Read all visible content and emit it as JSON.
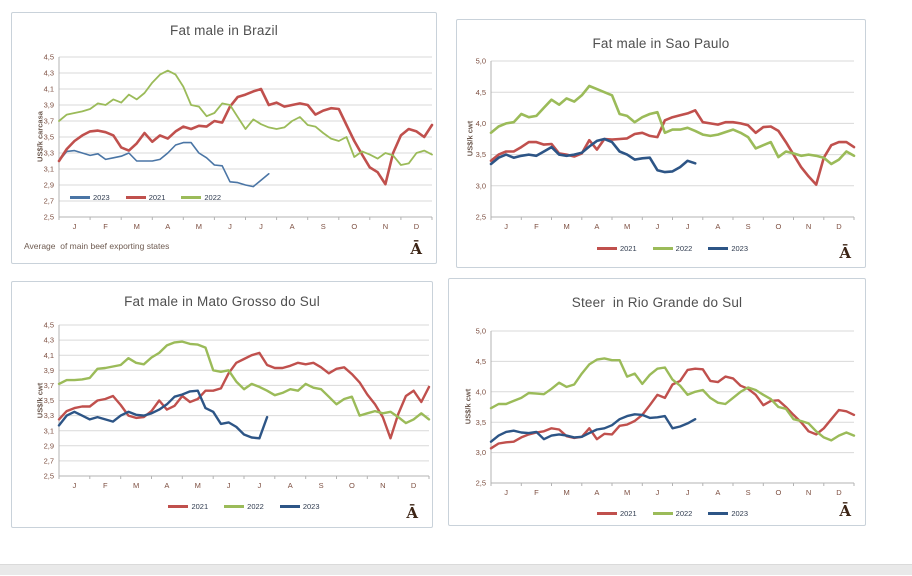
{
  "page": {
    "background": "#ffffff",
    "bottom_bar_color": "#e9e9e9"
  },
  "months": [
    "J",
    "F",
    "M",
    "A",
    "M",
    "J",
    "J",
    "A",
    "S",
    "O",
    "N",
    "D"
  ],
  "colors": {
    "red_2021": "#c0504d",
    "green_2022": "#9bbb59",
    "blue_2023_light": "#4a75a5",
    "blue_2023_dark": "#2d5586",
    "grid": "#d9d9d9",
    "axis": "#b3b3b3",
    "tick_text": "#7d4f41",
    "title_text": "#4f4f4f",
    "glyph_text": "#3c2415"
  },
  "charts": [
    {
      "title": "Fat male in Brazil",
      "footnote": "Average  of main beef exporting states",
      "corner_glyph": "Ā",
      "chart_data": {
        "type": "line",
        "ylabel": "US$/k carcasa",
        "x_categories": [
          "J",
          "F",
          "M",
          "A",
          "M",
          "J",
          "J",
          "A",
          "S",
          "O",
          "N",
          "D"
        ],
        "ylim": [
          2.5,
          4.5
        ],
        "y_step": 0.2,
        "y_tick_labels": [
          "2,5",
          "2,7",
          "2,9",
          "3,1",
          "3,3",
          "3,5",
          "3,7",
          "3,9",
          "4,1",
          "4,3",
          "4,5"
        ],
        "weeks": 49,
        "grid": "horizontal",
        "legend_position": "inside-bottom-left",
        "series": [
          {
            "name": "2023",
            "color": "#4a75a5",
            "width": 1.6,
            "values": [
              3.2,
              3.32,
              3.33,
              3.3,
              3.27,
              3.29,
              3.22,
              3.24,
              3.26,
              3.3,
              3.2,
              3.2,
              3.2,
              3.22,
              3.3,
              3.4,
              3.43,
              3.43,
              3.3,
              3.24,
              3.15,
              3.14,
              2.94,
              2.93,
              2.9,
              2.88,
              2.96,
              3.04
            ]
          },
          {
            "name": "2021",
            "color": "#c0504d",
            "width": 2.6,
            "values": [
              3.2,
              3.35,
              3.45,
              3.52,
              3.57,
              3.58,
              3.56,
              3.52,
              3.37,
              3.33,
              3.42,
              3.55,
              3.44,
              3.52,
              3.48,
              3.57,
              3.63,
              3.6,
              3.64,
              3.63,
              3.7,
              3.68,
              3.88,
              4.0,
              4.03,
              4.07,
              4.1,
              3.9,
              3.93,
              3.88,
              3.9,
              3.92,
              3.9,
              3.78,
              3.83,
              3.86,
              3.85,
              3.65,
              3.45,
              3.28,
              3.12,
              3.06,
              2.91,
              3.3,
              3.52,
              3.6,
              3.57,
              3.5,
              3.65
            ]
          },
          {
            "name": "2022",
            "color": "#9bbb59",
            "width": 1.8,
            "values": [
              3.7,
              3.78,
              3.8,
              3.82,
              3.85,
              3.92,
              3.9,
              3.97,
              3.93,
              4.03,
              3.97,
              4.05,
              4.18,
              4.28,
              4.33,
              4.28,
              4.13,
              3.9,
              3.88,
              3.76,
              3.8,
              3.92,
              3.9,
              3.75,
              3.6,
              3.72,
              3.66,
              3.62,
              3.6,
              3.62,
              3.7,
              3.75,
              3.65,
              3.63,
              3.55,
              3.48,
              3.45,
              3.5,
              3.25,
              3.32,
              3.28,
              3.23,
              3.3,
              3.27,
              3.15,
              3.17,
              3.3,
              3.33,
              3.28
            ]
          }
        ]
      }
    },
    {
      "title": "Fat male in Sao Paulo",
      "footnote": "",
      "corner_glyph": "Ā",
      "chart_data": {
        "type": "line",
        "ylabel": "US$/k cwt",
        "x_categories": [
          "J",
          "F",
          "M",
          "A",
          "M",
          "J",
          "J",
          "A",
          "S",
          "O",
          "N",
          "D"
        ],
        "ylim": [
          2.5,
          5.0
        ],
        "y_step": 0.5,
        "y_tick_labels": [
          "2,5",
          "3,0",
          "3,5",
          "4,0",
          "4,5",
          "5,0"
        ],
        "weeks": 49,
        "grid": "horizontal",
        "legend_position": "below-center",
        "series": [
          {
            "name": "2021",
            "color": "#c0504d",
            "width": 2.6,
            "values": [
              3.4,
              3.5,
              3.55,
              3.55,
              3.62,
              3.7,
              3.7,
              3.66,
              3.67,
              3.52,
              3.5,
              3.47,
              3.52,
              3.73,
              3.58,
              3.75,
              3.74,
              3.75,
              3.76,
              3.83,
              3.85,
              3.8,
              3.78,
              4.05,
              4.1,
              4.13,
              4.16,
              4.21,
              4.02,
              4.0,
              3.98,
              4.02,
              4.02,
              4.0,
              3.97,
              3.85,
              3.94,
              3.95,
              3.88,
              3.7,
              3.5,
              3.3,
              3.15,
              3.02,
              3.45,
              3.65,
              3.7,
              3.7,
              3.62
            ]
          },
          {
            "name": "2022",
            "color": "#9bbb59",
            "width": 2.6,
            "values": [
              3.85,
              3.95,
              4.0,
              4.02,
              4.15,
              4.1,
              4.12,
              4.25,
              4.38,
              4.3,
              4.4,
              4.35,
              4.45,
              4.6,
              4.55,
              4.5,
              4.45,
              4.15,
              4.12,
              4.02,
              4.1,
              4.15,
              4.18,
              3.85,
              3.9,
              3.9,
              3.93,
              3.88,
              3.82,
              3.8,
              3.82,
              3.86,
              3.9,
              3.85,
              3.78,
              3.6,
              3.65,
              3.7,
              3.46,
              3.55,
              3.52,
              3.48,
              3.5,
              3.48,
              3.45,
              3.35,
              3.42,
              3.55,
              3.48
            ]
          },
          {
            "name": "2023",
            "color": "#2d5586",
            "width": 2.6,
            "values": [
              3.35,
              3.45,
              3.5,
              3.45,
              3.48,
              3.5,
              3.48,
              3.55,
              3.62,
              3.5,
              3.48,
              3.5,
              3.53,
              3.63,
              3.72,
              3.75,
              3.7,
              3.55,
              3.5,
              3.42,
              3.44,
              3.45,
              3.25,
              3.22,
              3.23,
              3.3,
              3.4,
              3.36
            ]
          }
        ]
      }
    },
    {
      "title": "Fat male in Mato Grosso do Sul",
      "footnote": "",
      "corner_glyph": "Ā",
      "chart_data": {
        "type": "line",
        "ylabel": "US$/k cwt",
        "x_categories": [
          "J",
          "F",
          "M",
          "A",
          "M",
          "J",
          "J",
          "A",
          "S",
          "O",
          "N",
          "D"
        ],
        "ylim": [
          2.5,
          4.5
        ],
        "y_step": 0.2,
        "y_tick_labels": [
          "2,5",
          "2,7",
          "2,9",
          "3,1",
          "3,3",
          "3,5",
          "3,7",
          "3,9",
          "4,1",
          "4,3",
          "4,5"
        ],
        "weeks": 49,
        "grid": "horizontal",
        "legend_position": "below-center",
        "series": [
          {
            "name": "2021",
            "color": "#c0504d",
            "width": 2.4,
            "values": [
              3.25,
              3.36,
              3.4,
              3.42,
              3.42,
              3.5,
              3.52,
              3.56,
              3.44,
              3.3,
              3.27,
              3.28,
              3.36,
              3.5,
              3.38,
              3.43,
              3.56,
              3.48,
              3.52,
              3.63,
              3.63,
              3.66,
              3.86,
              4.0,
              4.05,
              4.1,
              4.13,
              3.97,
              3.93,
              3.93,
              3.96,
              4.0,
              3.98,
              4.0,
              3.94,
              3.86,
              3.92,
              3.94,
              3.85,
              3.74,
              3.58,
              3.45,
              3.28,
              3.0,
              3.32,
              3.56,
              3.63,
              3.48,
              3.68
            ]
          },
          {
            "name": "2022",
            "color": "#9bbb59",
            "width": 2.4,
            "values": [
              3.72,
              3.77,
              3.77,
              3.78,
              3.8,
              3.92,
              3.93,
              3.95,
              3.97,
              4.06,
              4.0,
              3.98,
              4.07,
              4.13,
              4.23,
              4.27,
              4.28,
              4.25,
              4.24,
              4.2,
              3.9,
              3.88,
              3.9,
              3.75,
              3.65,
              3.72,
              3.68,
              3.63,
              3.57,
              3.6,
              3.65,
              3.63,
              3.72,
              3.67,
              3.65,
              3.55,
              3.45,
              3.52,
              3.55,
              3.3,
              3.33,
              3.36,
              3.33,
              3.35,
              3.28,
              3.2,
              3.25,
              3.33,
              3.25
            ]
          },
          {
            "name": "2023",
            "color": "#2d5586",
            "width": 2.4,
            "values": [
              3.17,
              3.3,
              3.35,
              3.3,
              3.25,
              3.28,
              3.25,
              3.22,
              3.3,
              3.35,
              3.31,
              3.3,
              3.33,
              3.38,
              3.45,
              3.55,
              3.58,
              3.62,
              3.63,
              3.4,
              3.35,
              3.19,
              3.21,
              3.15,
              3.05,
              3.01,
              3.0,
              3.28
            ]
          }
        ]
      }
    },
    {
      "title": "Steer  in Rio Grande do Sul",
      "footnote": "",
      "corner_glyph": "Ā",
      "chart_data": {
        "type": "line",
        "ylabel": "US$/k cwt",
        "x_categories": [
          "J",
          "F",
          "M",
          "A",
          "M",
          "J",
          "J",
          "A",
          "S",
          "O",
          "N",
          "D"
        ],
        "ylim": [
          2.5,
          5.0
        ],
        "y_step": 0.5,
        "y_tick_labels": [
          "2,5",
          "3,0",
          "3,5",
          "4,0",
          "4,5",
          "5,0"
        ],
        "weeks": 49,
        "grid": "horizontal",
        "legend_position": "below-center",
        "series": [
          {
            "name": "2021",
            "color": "#c0504d",
            "width": 2.4,
            "values": [
              3.07,
              3.15,
              3.17,
              3.18,
              3.25,
              3.3,
              3.33,
              3.35,
              3.4,
              3.38,
              3.27,
              3.24,
              3.26,
              3.4,
              3.22,
              3.31,
              3.3,
              3.44,
              3.46,
              3.52,
              3.62,
              3.78,
              3.95,
              3.9,
              4.12,
              4.18,
              4.36,
              4.38,
              4.37,
              4.18,
              4.16,
              4.25,
              4.22,
              4.1,
              4.05,
              3.95,
              3.78,
              3.85,
              3.86,
              3.75,
              3.62,
              3.5,
              3.35,
              3.3,
              3.4,
              3.55,
              3.7,
              3.68,
              3.62
            ]
          },
          {
            "name": "2022",
            "color": "#9bbb59",
            "width": 2.4,
            "values": [
              3.73,
              3.8,
              3.8,
              3.85,
              3.9,
              3.98,
              3.97,
              3.96,
              4.05,
              4.15,
              4.08,
              4.12,
              4.3,
              4.45,
              4.53,
              4.55,
              4.52,
              4.52,
              4.25,
              4.3,
              4.13,
              4.28,
              4.38,
              4.4,
              4.2,
              4.1,
              3.95,
              4.0,
              4.03,
              3.9,
              3.82,
              3.8,
              3.9,
              4.0,
              4.07,
              4.03,
              3.95,
              3.88,
              3.75,
              3.72,
              3.55,
              3.52,
              3.48,
              3.35,
              3.25,
              3.2,
              3.28,
              3.33,
              3.28
            ]
          },
          {
            "name": "2023",
            "color": "#2d5586",
            "width": 2.4,
            "values": [
              3.18,
              3.28,
              3.34,
              3.36,
              3.33,
              3.32,
              3.34,
              3.22,
              3.28,
              3.3,
              3.28,
              3.25,
              3.26,
              3.32,
              3.38,
              3.4,
              3.45,
              3.55,
              3.6,
              3.63,
              3.62,
              3.57,
              3.58,
              3.6,
              3.4,
              3.43,
              3.48,
              3.55
            ]
          }
        ]
      }
    }
  ]
}
